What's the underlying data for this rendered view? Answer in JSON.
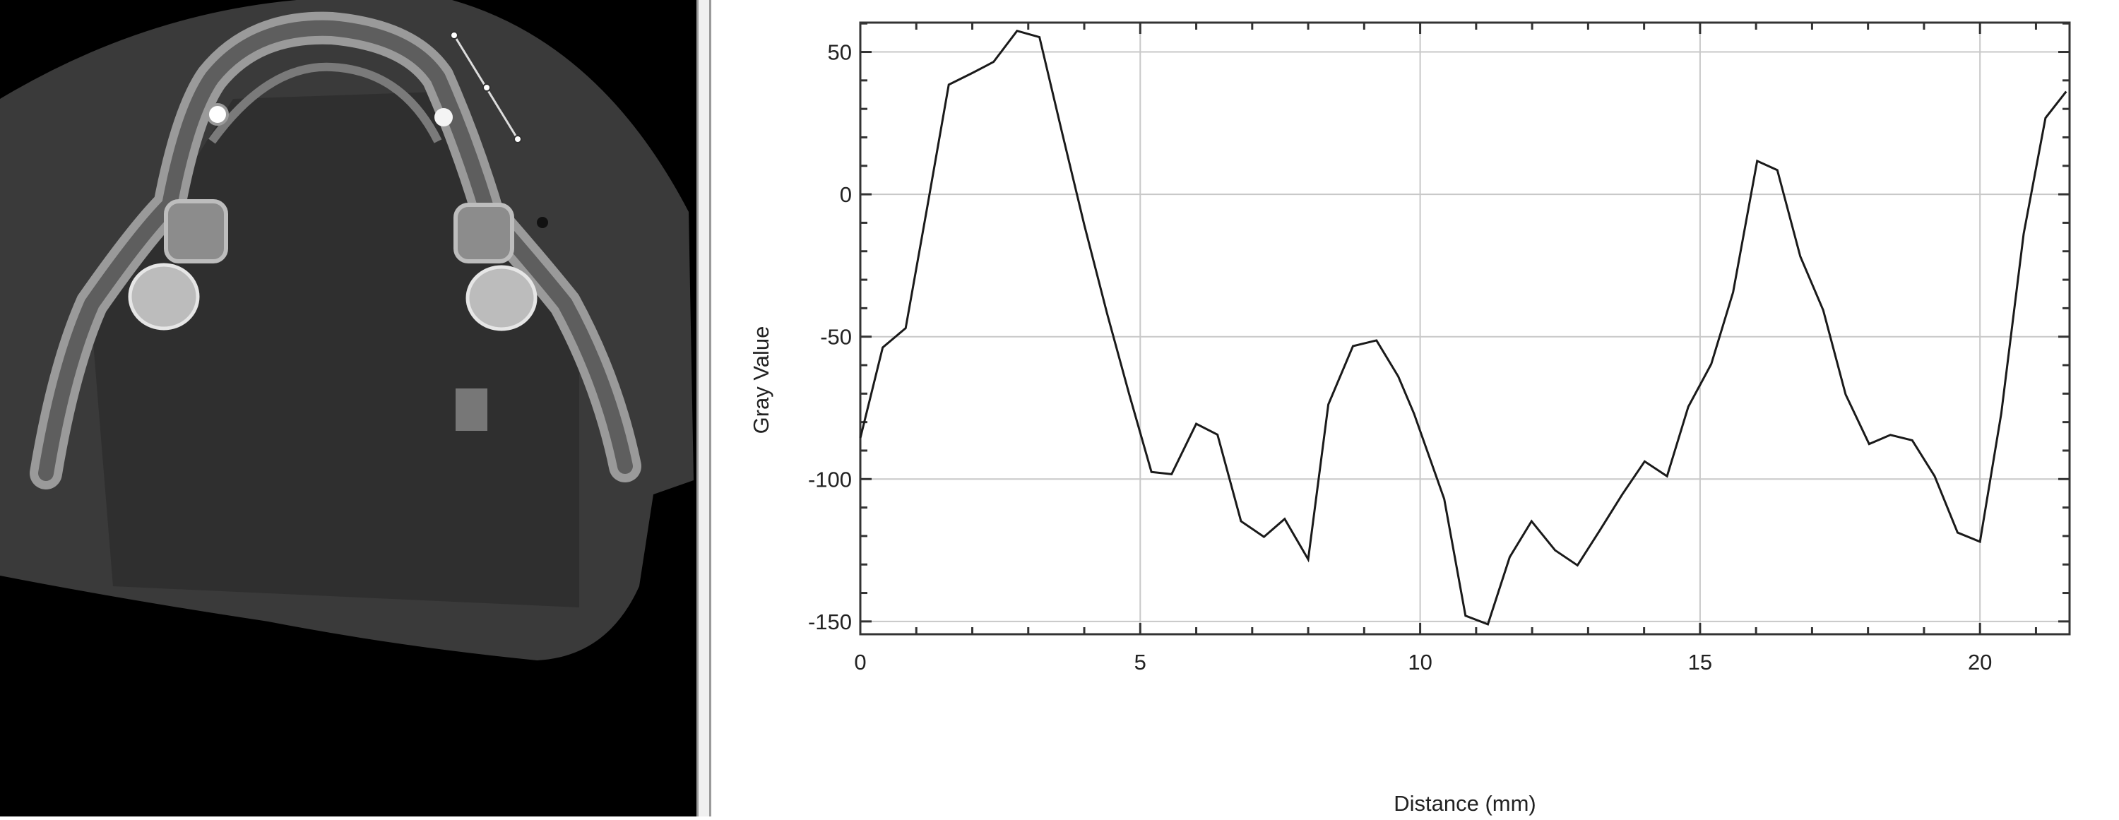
{
  "image_panel": {
    "description_icon": "ct-axial-slice-image",
    "measurement_line_icon": "line-profile-tool"
  },
  "chart_data": {
    "type": "line",
    "title": "",
    "xlabel": "Distance (mm)",
    "ylabel": "Gray Value",
    "xlim": [
      0,
      21.6
    ],
    "ylim": [
      -154.5,
      60.3
    ],
    "xticks": [
      0,
      5,
      10,
      15,
      20
    ],
    "yticks": [
      50,
      0,
      -50,
      -100,
      -150
    ],
    "xtick_labels": [
      "0",
      "5",
      "10",
      "15",
      "20"
    ],
    "ytick_labels": [
      "50",
      "0",
      "-50",
      "-100",
      "-150"
    ],
    "grid": true,
    "line_color": "#1a1a1a",
    "x": [
      0,
      0.4,
      0.81,
      1.2,
      1.58,
      2.0,
      2.38,
      2.8,
      3.2,
      3.6,
      4.0,
      4.41,
      4.8,
      5.2,
      5.56,
      6.0,
      6.38,
      6.8,
      7.21,
      7.58,
      8.0,
      8.36,
      8.8,
      9.22,
      9.61,
      9.89,
      10.43,
      10.81,
      11.21,
      11.6,
      11.99,
      12.41,
      12.81,
      13.21,
      13.61,
      14.01,
      14.41,
      14.79,
      15.2,
      15.59,
      16.02,
      16.38,
      16.79,
      17.2,
      17.6,
      18.02,
      18.4,
      18.79,
      19.19,
      19.6,
      20.0,
      20.38,
      20.78,
      21.17,
      21.54
    ],
    "y": [
      -85.6,
      -53.8,
      -47,
      -4,
      38.5,
      42.6,
      46.5,
      57.4,
      55.2,
      22,
      -10.7,
      -42,
      -70,
      -97.5,
      -98.3,
      -80.6,
      -84.4,
      -114.8,
      -120.3,
      -114,
      -128.2,
      -73.8,
      -53.3,
      -51.3,
      -64,
      -77,
      -107,
      -148,
      -151,
      -127.4,
      -114.8,
      -125,
      -130.3,
      -118,
      -105.4,
      -93.8,
      -99,
      -74.6,
      -59.6,
      -34.4,
      11.7,
      8.5,
      -21.8,
      -40.7,
      -70.3,
      -87.7,
      -84.5,
      -86.4,
      -99,
      -118.8,
      -122,
      -77,
      -13.9,
      26.8,
      36.1
    ]
  }
}
